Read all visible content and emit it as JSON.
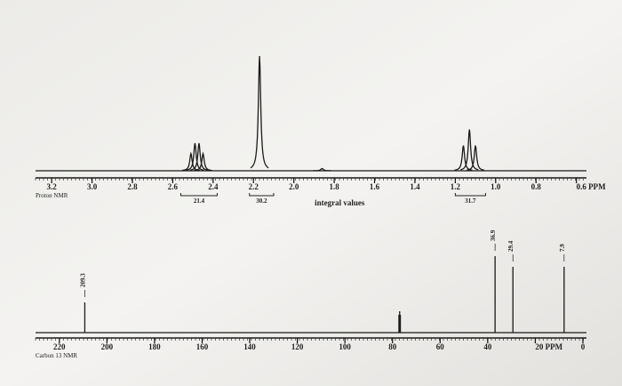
{
  "chart_data": [
    {
      "type": "spectrum",
      "style": "lorentz",
      "axis_label": "Proton NMR",
      "note": "integral values",
      "x": [
        2.51,
        2.49,
        2.47,
        2.45,
        2.17,
        1.86,
        1.16,
        1.13,
        1.1
      ],
      "values": [
        15,
        24,
        24,
        15,
        100,
        2,
        22,
        36,
        22
      ],
      "color": "#1a1a1a",
      "xlim": [
        3.28,
        0.55
      ],
      "ylim": [
        0,
        100
      ],
      "xticks": [
        3.2,
        {
          "value": 3,
          "label": "3.0"
        },
        2.8,
        2.6,
        2.4,
        2.2,
        {
          "value": 2,
          "label": "2.0"
        },
        1.8,
        1.6,
        1.4,
        1.2,
        {
          "value": 1,
          "label": "1.0"
        },
        0.8,
        {
          "value": 0.6,
          "label": "0.6 PPM"
        }
      ],
      "integrals": [
        {
          "value": 21.4,
          "from": 2.56,
          "to": 2.38
        },
        {
          "value": 30.2,
          "from": 2.22,
          "to": 2.1
        },
        {
          "value": 31.7,
          "from": 1.2,
          "to": 1.05
        }
      ]
    },
    {
      "type": "spectrum",
      "style": "stick",
      "axis_label": "Carbon 13 NMR",
      "x": [
        209.3,
        77.3,
        77.0,
        76.7,
        36.9,
        29.4,
        7.9
      ],
      "values": [
        34,
        20,
        24,
        20,
        86,
        74,
        74
      ],
      "peak_labels": [
        "209.3",
        null,
        null,
        null,
        "36.9",
        "29.4",
        "7.9"
      ],
      "color": "#1a1a1a",
      "xlim": [
        230,
        -1.5
      ],
      "ylim": [
        0,
        100
      ],
      "xticks": [
        220,
        200,
        180,
        160,
        140,
        120,
        100,
        80,
        60,
        40,
        {
          "value": 20,
          "label": "20 PPM"
        },
        0
      ]
    }
  ]
}
